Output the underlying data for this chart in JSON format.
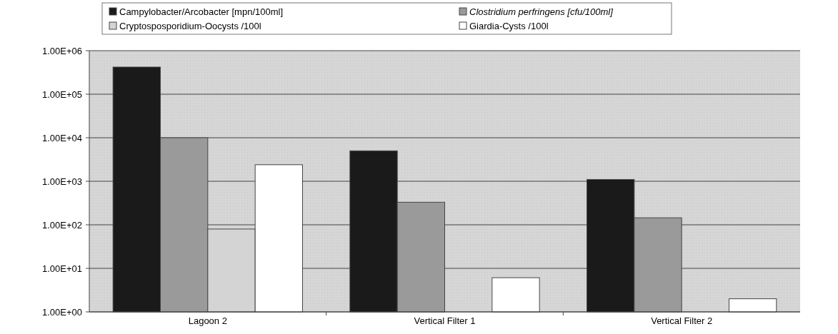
{
  "chart_data": {
    "type": "bar",
    "categories": [
      "Lagoon 2",
      "Vertical Filter 1",
      "Vertical Filter 2"
    ],
    "series": [
      {
        "name": "Campylobacter/Arcobacter [mpn/100ml]",
        "color": "#1a1a1a",
        "values": [
          420000,
          5000,
          1100
        ]
      },
      {
        "name": "Clostridium perfringens [cfu/100ml]",
        "color": "#9a9a9a",
        "values": [
          10000,
          330,
          145
        ]
      },
      {
        "name": "Cryptosposporidium-Oocysts /100l",
        "color": "#d4d4d4",
        "values": [
          80,
          null,
          null
        ]
      },
      {
        "name": "Giardia-Cysts /100l",
        "color": "#ffffff",
        "values": [
          2400,
          6.1,
          2
        ]
      }
    ],
    "log": true,
    "ylim": [
      1,
      1000000
    ],
    "yticks": [
      {
        "value": 1,
        "label": "1.00E+00"
      },
      {
        "value": 10,
        "label": "1.00E+01"
      },
      {
        "value": 100,
        "label": "1.00E+02"
      },
      {
        "value": 1000,
        "label": "1.00E+03"
      },
      {
        "value": 10000,
        "label": "1.00E+04"
      },
      {
        "value": 100000,
        "label": "1.00E+05"
      },
      {
        "value": 1000000,
        "label": "1.00E+06"
      }
    ],
    "grid": "y",
    "legend": "top"
  }
}
